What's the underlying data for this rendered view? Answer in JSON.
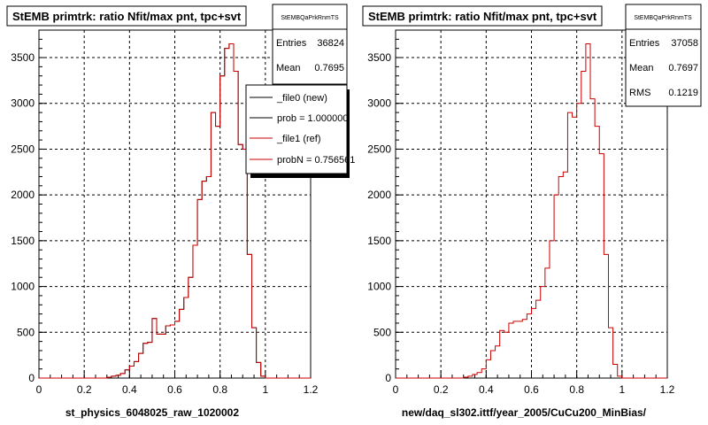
{
  "chart_data": [
    {
      "type": "histogram",
      "title": "StEMB primtrk: ratio Nfit/max pnt, tpc+svt",
      "xlabel": "st_physics_6048025_raw_1020002",
      "xlim": [
        0,
        1.2
      ],
      "ylim": [
        0,
        3800
      ],
      "xticks": [
        "0",
        "0.2",
        "0.4",
        "0.6",
        "0.8",
        "1",
        "1.2"
      ],
      "yticks": [
        "0",
        "500",
        "1000",
        "1500",
        "2000",
        "2500",
        "3000",
        "3500"
      ],
      "grid": true,
      "stats": {
        "name": "StEMBQaPrkRnmTS",
        "rows": [
          {
            "label": "Entries",
            "value": "36824"
          },
          {
            "label": "Mean",
            "value": "0.7695"
          }
        ]
      },
      "legend": {
        "placement": "right",
        "entries": [
          {
            "label": "_file0 (new)",
            "color": "#000000"
          },
          {
            "label": "prob = 1.000000",
            "color": "#000000"
          },
          {
            "label": "_file1 (ref)",
            "color": "#cc0000"
          },
          {
            "label": "probN = 0.756561",
            "color": "#cc0000"
          }
        ]
      },
      "bin_width": 0.02,
      "series": [
        {
          "color": "#000000",
          "x": [
            0.3,
            0.32,
            0.34,
            0.36,
            0.38,
            0.4,
            0.42,
            0.44,
            0.46,
            0.48,
            0.5,
            0.52,
            0.54,
            0.56,
            0.58,
            0.6,
            0.62,
            0.64,
            0.66,
            0.68,
            0.7,
            0.72,
            0.74,
            0.76,
            0.78,
            0.8,
            0.82,
            0.84,
            0.86,
            0.88,
            0.9,
            0.92,
            0.94,
            0.96,
            0.98
          ],
          "values": [
            10,
            20,
            30,
            50,
            90,
            130,
            180,
            270,
            380,
            390,
            650,
            480,
            480,
            570,
            580,
            620,
            750,
            880,
            1100,
            1450,
            1950,
            2150,
            2200,
            2900,
            2750,
            3300,
            3600,
            3650,
            3350,
            2550,
            2500,
            1350,
            550,
            170,
            20
          ]
        },
        {
          "color": "#cc0000",
          "x": [
            0.3,
            0.32,
            0.34,
            0.36,
            0.38,
            0.4,
            0.42,
            0.44,
            0.46,
            0.48,
            0.5,
            0.52,
            0.54,
            0.56,
            0.58,
            0.6,
            0.62,
            0.64,
            0.66,
            0.68,
            0.7,
            0.72,
            0.74,
            0.76,
            0.78,
            0.8,
            0.82,
            0.84,
            0.86,
            0.88,
            0.9,
            0.92,
            0.94,
            0.96,
            0.98
          ],
          "values": [
            10,
            20,
            30,
            50,
            90,
            130,
            180,
            270,
            380,
            390,
            650,
            480,
            480,
            570,
            580,
            620,
            750,
            880,
            1100,
            1450,
            1950,
            2150,
            2200,
            2900,
            2750,
            3300,
            3600,
            3650,
            3350,
            2550,
            2500,
            1350,
            550,
            170,
            20
          ]
        }
      ]
    },
    {
      "type": "histogram",
      "title": "StEMB primtrk: ratio Nfit/max pnt, tpc+svt",
      "xlabel": "new/daq_sl302.ittf/year_2005/CuCu200_MinBias/",
      "xlim": [
        0,
        1.2
      ],
      "ylim": [
        0,
        3800
      ],
      "xticks": [
        "0",
        "0.2",
        "0.4",
        "0.6",
        "0.8",
        "1",
        "1.2"
      ],
      "yticks": [
        "0",
        "500",
        "1000",
        "1500",
        "2000",
        "2500",
        "3000",
        "3500"
      ],
      "grid": true,
      "stats": {
        "name": "StEMBQaPrkRnmTS",
        "rows": [
          {
            "label": "Entries",
            "value": "37058"
          },
          {
            "label": "Mean",
            "value": "0.7697"
          },
          {
            "label": "RMS",
            "value": "0.1219"
          }
        ]
      },
      "bin_width": 0.02,
      "series": [
        {
          "color": "#cc0000",
          "x": [
            0.3,
            0.32,
            0.34,
            0.36,
            0.38,
            0.4,
            0.42,
            0.44,
            0.46,
            0.48,
            0.5,
            0.52,
            0.54,
            0.56,
            0.58,
            0.6,
            0.62,
            0.64,
            0.66,
            0.68,
            0.7,
            0.72,
            0.74,
            0.76,
            0.78,
            0.8,
            0.82,
            0.84,
            0.86,
            0.88,
            0.9,
            0.92,
            0.94,
            0.96,
            0.98
          ],
          "values": [
            10,
            20,
            40,
            60,
            100,
            200,
            300,
            350,
            520,
            500,
            600,
            620,
            620,
            640,
            700,
            760,
            850,
            1000,
            1200,
            1500,
            2000,
            2200,
            2250,
            2900,
            2850,
            3000,
            3350,
            3650,
            3050,
            2750,
            2450,
            1350,
            550,
            150,
            20
          ]
        }
      ]
    }
  ]
}
